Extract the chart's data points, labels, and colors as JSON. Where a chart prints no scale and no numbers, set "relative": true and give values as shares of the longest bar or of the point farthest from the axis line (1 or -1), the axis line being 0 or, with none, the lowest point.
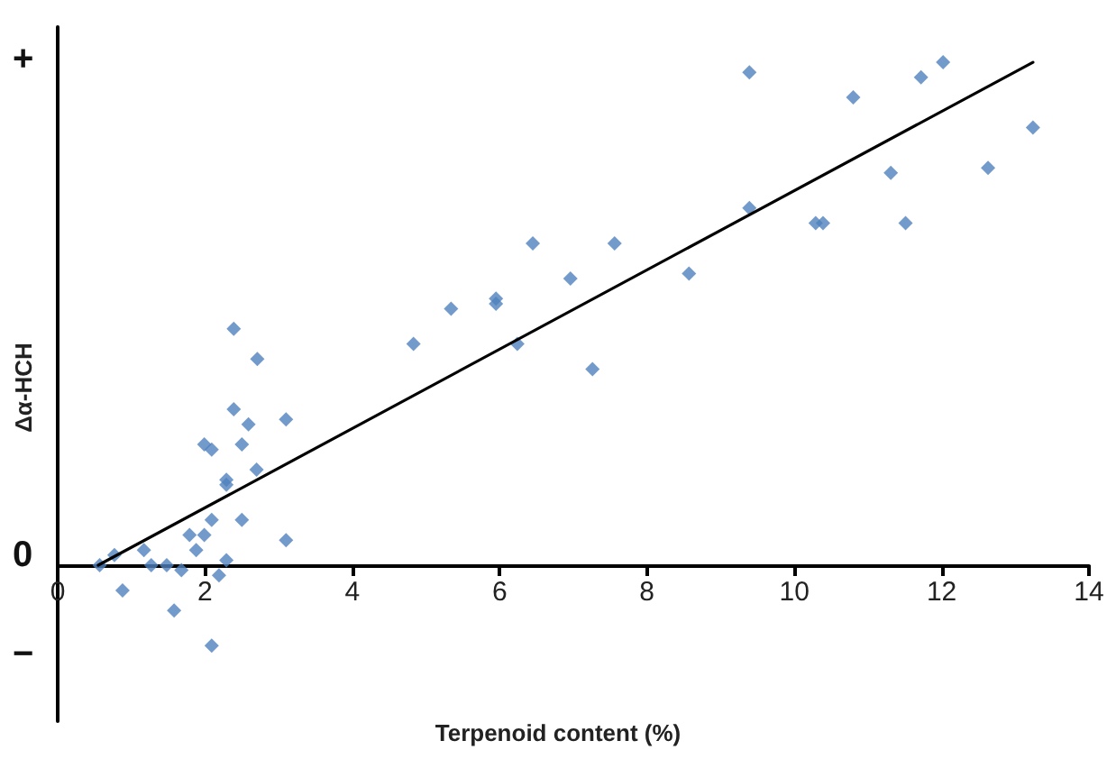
{
  "chart_data": {
    "type": "scatter",
    "relative": true,
    "xlabel": "Terpenoid content (%)",
    "ylabel": "Δα-HCH",
    "annotations": [
      "+",
      "0",
      "−"
    ],
    "xlim": [
      0,
      14
    ],
    "xticks": [
      0,
      2,
      4,
      6,
      8,
      10,
      12,
      14
    ],
    "grid": false,
    "marker": "diamond",
    "series": [
      {
        "color": "#4f81bd",
        "x": [
          2.39,
          2.71,
          2.39,
          3.1,
          2.59,
          1.99,
          2.09,
          2.5,
          2.7,
          2.29,
          2.29,
          2.09,
          2.5,
          1.79,
          1.99,
          1.88,
          1.17,
          3.1,
          0.77,
          0.57,
          1.27,
          1.48,
          1.68,
          2.29,
          2.19,
          0.88,
          1.58,
          2.09,
          9.39,
          12.02,
          11.72,
          10.8,
          13.24,
          12.63,
          11.31,
          9.39,
          10.29,
          10.39,
          11.51,
          6.45,
          7.56,
          8.57,
          6.96,
          5.95,
          5.95,
          5.34,
          4.83,
          6.24,
          7.26
        ],
        "values": [
          0.47,
          0.41,
          0.31,
          0.29,
          0.28,
          0.24,
          0.23,
          0.24,
          0.19,
          0.17,
          0.16,
          0.09,
          0.09,
          0.06,
          0.06,
          0.03,
          0.03,
          0.05,
          0.02,
          0,
          0,
          0,
          -0.01,
          0.01,
          -0.02,
          -0.05,
          -0.09,
          -0.16,
          0.98,
          1,
          0.97,
          0.93,
          0.87,
          0.79,
          0.78,
          0.71,
          0.68,
          0.68,
          0.68,
          0.64,
          0.64,
          0.58,
          0.57,
          0.53,
          0.52,
          0.51,
          0.44,
          0.44,
          0.39
        ]
      },
      {
        "type": "line",
        "color": "#000000",
        "marker": "none",
        "line_style": "solid",
        "x": [
          0.55,
          13.24
        ],
        "values": [
          0,
          1
        ]
      }
    ]
  }
}
